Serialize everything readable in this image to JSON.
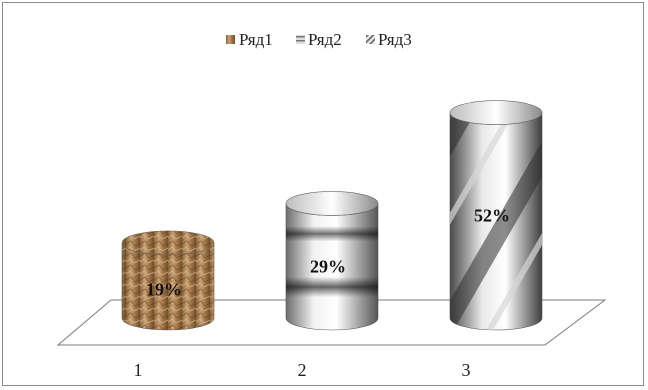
{
  "chart_data": {
    "type": "bar",
    "style": "3d-cylinder",
    "categories": [
      "1",
      "2",
      "3"
    ],
    "series": [
      {
        "name": "Ряд1",
        "texture": "crumpled-paper",
        "color": "#b58a5a"
      },
      {
        "name": "Ряд2",
        "texture": "horizontal-bands",
        "color": "#9a9a9a"
      },
      {
        "name": "Ряд3",
        "texture": "diagonal-stripes",
        "color": "#8a8a8a"
      }
    ],
    "values": [
      19,
      29,
      52
    ],
    "data_labels": [
      "19%",
      "29%",
      "52%"
    ],
    "legend_position": "top",
    "grid": false
  }
}
